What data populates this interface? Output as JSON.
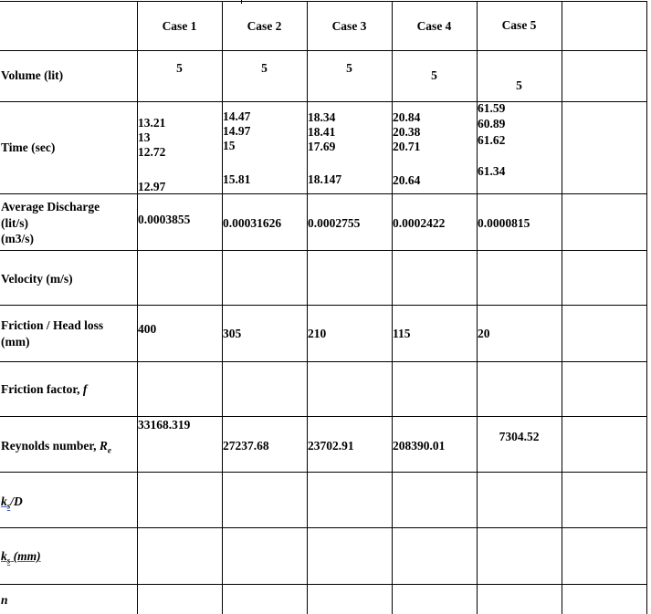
{
  "headers": [
    "Case 1",
    "Case 2",
    "Case 3",
    "Case 4",
    "Case 5"
  ],
  "rows": {
    "volume": {
      "label": "Volume (lit)",
      "values": [
        "5",
        "5",
        "5",
        "5",
        "5"
      ]
    },
    "time": {
      "label": "Time (sec)",
      "case1": [
        "13.21",
        "13",
        "12.72",
        "12.97"
      ],
      "case2": [
        "14.47",
        "14.97",
        "15",
        "15.81"
      ],
      "case3": [
        "18.34",
        "18.41",
        "17.69",
        "18.147"
      ],
      "case4": [
        "20.84",
        "20.38",
        "20.71",
        "20.64"
      ],
      "case5": [
        "61.59",
        "60.89",
        "61.62",
        "61.34"
      ]
    },
    "discharge": {
      "label_lines": [
        "Average Discharge",
        "(lit/s)",
        "(m3/s)"
      ],
      "values": [
        "0.0003855",
        "0.00031626",
        "0.0002755",
        "0.0002422",
        "0.0000815"
      ]
    },
    "velocity": {
      "label": "Velocity (m/s)"
    },
    "headloss": {
      "label_lines": [
        "Friction / Head loss",
        "(mm)"
      ],
      "values": [
        "400",
        "305",
        "210",
        "115",
        "20"
      ]
    },
    "friction": {
      "label_prefix": "Friction factor, ",
      "label_symbol": "f"
    },
    "reynolds": {
      "label_prefix": "Reynolds number, ",
      "label_symbol": "R",
      "label_sub": "e",
      "values": [
        "33168.319",
        "27237.68",
        "23702.91",
        "208390.01",
        "7304.52"
      ]
    },
    "ks_d": {
      "label_k": "k",
      "label_sub": "s",
      "label_rest": "/D"
    },
    "ks_mm": {
      "label_k": "k",
      "label_sub": "s",
      "label_rest": " (mm)"
    },
    "n": {
      "label": "n"
    }
  }
}
